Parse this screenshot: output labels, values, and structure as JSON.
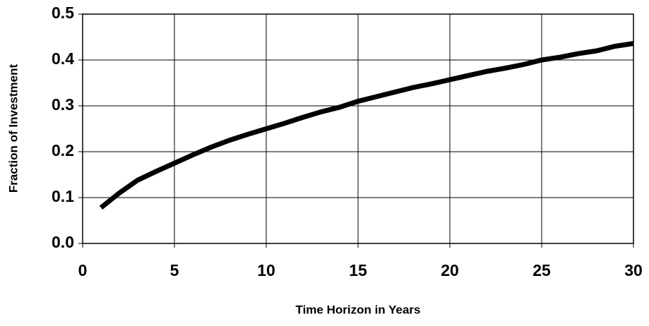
{
  "chart_data": {
    "type": "line",
    "x_label": "Time Horizon in Years",
    "y_label": "Fraction of Investment",
    "x": [
      1,
      2,
      3,
      4,
      5,
      6,
      7,
      8,
      9,
      10,
      11,
      12,
      13,
      14,
      15,
      16,
      17,
      18,
      19,
      20,
      21,
      22,
      23,
      24,
      25,
      26,
      27,
      28,
      29,
      30
    ],
    "series": [
      {
        "color": "#000000",
        "values": [
          0.078,
          0.11,
          0.138,
          0.157,
          0.175,
          0.193,
          0.21,
          0.225,
          0.238,
          0.25,
          0.262,
          0.275,
          0.287,
          0.297,
          0.31,
          0.32,
          0.33,
          0.34,
          0.348,
          0.357,
          0.366,
          0.375,
          0.382,
          0.39,
          0.4,
          0.406,
          0.414,
          0.42,
          0.43,
          0.436
        ]
      }
    ],
    "xlim": [
      0,
      30
    ],
    "xticks": [
      0,
      5,
      10,
      15,
      20,
      25,
      30
    ],
    "ylim": [
      0,
      0.5
    ],
    "yticks": [
      {
        "value": 0,
        "label": "0.0"
      },
      0.1,
      0.2,
      0.3,
      0.4,
      0.5
    ],
    "grid": true
  }
}
